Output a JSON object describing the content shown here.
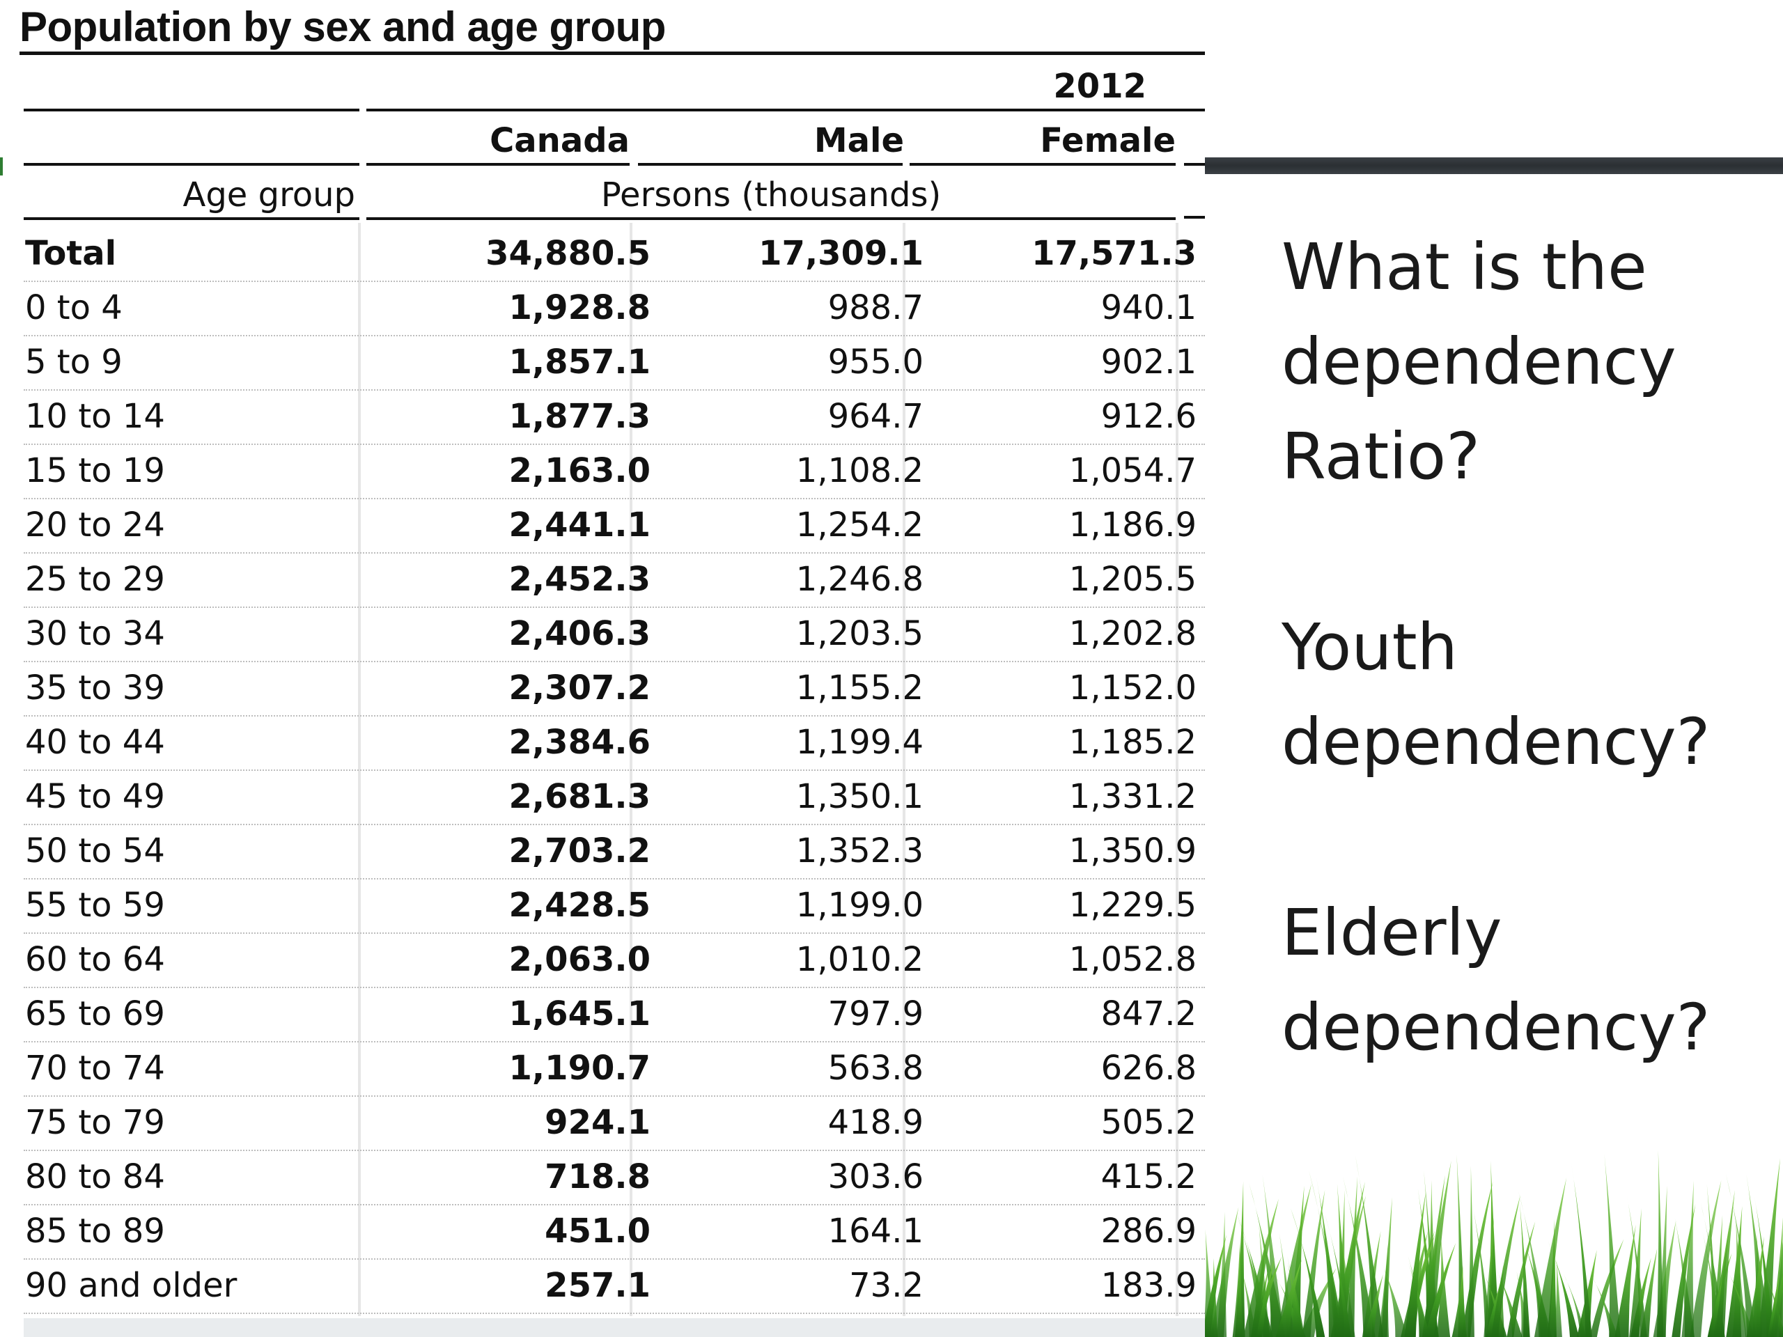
{
  "table": {
    "title": "Population by sex and age group",
    "year": "2012",
    "col_canada": "Canada",
    "col_male": "Male",
    "col_female": "Female",
    "age_group_label": "Age group",
    "units_label": "Persons (thousands)",
    "rows": [
      {
        "label": "Total",
        "canada": "34,880.5",
        "male": "17,309.1",
        "female": "17,571.3"
      },
      {
        "label": "0 to 4",
        "canada": "1,928.8",
        "male": "988.7",
        "female": "940.1"
      },
      {
        "label": "5 to 9",
        "canada": "1,857.1",
        "male": "955.0",
        "female": "902.1"
      },
      {
        "label": "10 to 14",
        "canada": "1,877.3",
        "male": "964.7",
        "female": "912.6"
      },
      {
        "label": "15 to 19",
        "canada": "2,163.0",
        "male": "1,108.2",
        "female": "1,054.7"
      },
      {
        "label": "20 to 24",
        "canada": "2,441.1",
        "male": "1,254.2",
        "female": "1,186.9"
      },
      {
        "label": "25 to 29",
        "canada": "2,452.3",
        "male": "1,246.8",
        "female": "1,205.5"
      },
      {
        "label": "30 to 34",
        "canada": "2,406.3",
        "male": "1,203.5",
        "female": "1,202.8"
      },
      {
        "label": "35 to 39",
        "canada": "2,307.2",
        "male": "1,155.2",
        "female": "1,152.0"
      },
      {
        "label": "40 to 44",
        "canada": "2,384.6",
        "male": "1,199.4",
        "female": "1,185.2"
      },
      {
        "label": "45 to 49",
        "canada": "2,681.3",
        "male": "1,350.1",
        "female": "1,331.2"
      },
      {
        "label": "50 to 54",
        "canada": "2,703.2",
        "male": "1,352.3",
        "female": "1,350.9"
      },
      {
        "label": "55 to 59",
        "canada": "2,428.5",
        "male": "1,199.0",
        "female": "1,229.5"
      },
      {
        "label": "60 to 64",
        "canada": "2,063.0",
        "male": "1,010.2",
        "female": "1,052.8"
      },
      {
        "label": "65 to 69",
        "canada": "1,645.1",
        "male": "797.9",
        "female": "847.2"
      },
      {
        "label": "70 to 74",
        "canada": "1,190.7",
        "male": "563.8",
        "female": "626.8"
      },
      {
        "label": "75 to 79",
        "canada": "924.1",
        "male": "418.9",
        "female": "505.2"
      },
      {
        "label": "80 to 84",
        "canada": "718.8",
        "male": "303.6",
        "female": "415.2"
      },
      {
        "label": "85 to 89",
        "canada": "451.0",
        "male": "164.1",
        "female": "286.9"
      },
      {
        "label": "90 and older",
        "canada": "257.1",
        "male": "73.2",
        "female": "183.9"
      }
    ]
  },
  "questions": {
    "q1": [
      "What is the",
      "dependency",
      "Ratio?"
    ],
    "q2": [
      "Youth",
      "dependency?"
    ],
    "q3": [
      "Elderly",
      "dependency?"
    ]
  },
  "colors": {
    "grass_dark": "#2f7d1e",
    "grass_light": "#6cc03a",
    "bar_dark": "#2f3337"
  }
}
